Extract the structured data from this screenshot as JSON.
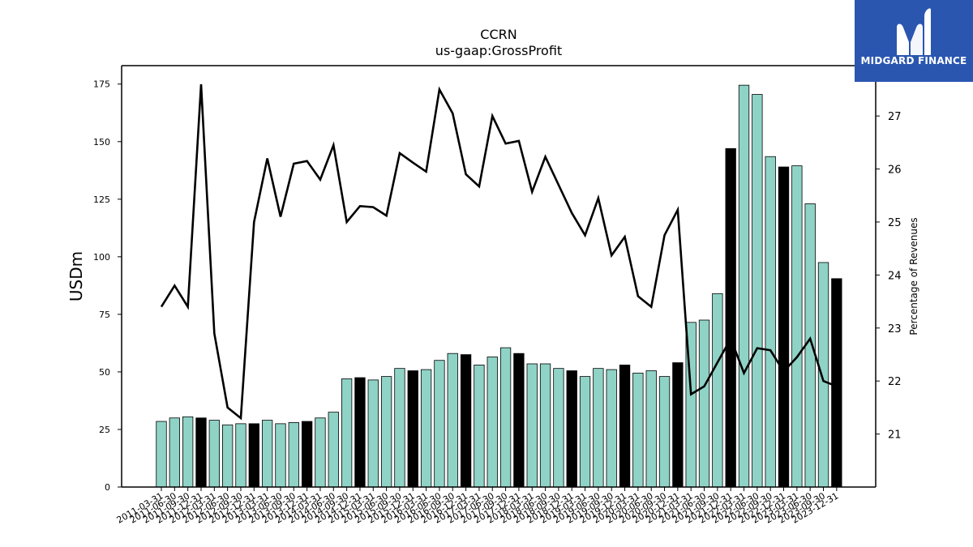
{
  "chart_data": {
    "type": "bar",
    "title": "CCRN",
    "subtitle": "us-gaap:GrossProfit",
    "ylabel": "USDm",
    "y2label": "Percentage of Revenues",
    "ylim": [
      0,
      183
    ],
    "y2lim": [
      20.0,
      27.95
    ],
    "yticks": [
      0,
      25,
      50,
      75,
      100,
      125,
      150,
      175
    ],
    "y2ticks": [
      21,
      22,
      23,
      24,
      25,
      26,
      27
    ],
    "grid": false,
    "bar_colors": {
      "quarter": "#8fd3c6",
      "fiscal_q4": "#000000"
    },
    "line_color": "#000000",
    "categories": [
      "2011-03-31",
      "2011-06-30",
      "2011-09-30",
      "2011-12-31",
      "2012-03-31",
      "2012-06-30",
      "2012-09-30",
      "2012-12-31",
      "2013-03-31",
      "2013-06-30",
      "2013-09-30",
      "2013-12-31",
      "2014-03-31",
      "2014-06-30",
      "2014-09-30",
      "2014-12-31",
      "2015-03-31",
      "2015-06-30",
      "2015-09-30",
      "2015-12-31",
      "2016-03-31",
      "2016-06-30",
      "2016-09-30",
      "2016-12-31",
      "2017-03-31",
      "2017-06-30",
      "2017-09-30",
      "2017-12-31",
      "2018-03-31",
      "2018-06-30",
      "2018-09-30",
      "2018-12-31",
      "2019-03-31",
      "2019-06-30",
      "2019-09-30",
      "2019-12-31",
      "2020-03-31",
      "2020-06-30",
      "2020-09-30",
      "2020-12-31",
      "2021-03-31",
      "2021-06-30",
      "2021-09-30",
      "2021-12-31",
      "2022-03-31",
      "2022-06-30",
      "2022-09-30",
      "2022-12-31",
      "2023-03-31",
      "2023-06-30",
      "2023-09-30",
      "2023-12-31"
    ],
    "series": [
      {
        "axis": "left",
        "kind": "bar",
        "values": [
          28.5,
          30,
          30.5,
          30,
          29,
          27,
          27.5,
          27.5,
          29,
          27.5,
          28,
          28.5,
          30,
          32.5,
          47,
          47.5,
          46.5,
          48,
          51.5,
          50.5,
          51,
          55,
          58,
          57.5,
          53,
          56.5,
          60.5,
          58,
          53.5,
          53.5,
          51.5,
          50.5,
          48,
          51.5,
          51,
          53,
          49.5,
          50.5,
          48,
          54,
          71.5,
          72.5,
          84,
          147,
          174.5,
          170.5,
          143.5,
          139,
          139.5,
          123,
          97.5,
          90.5
        ],
        "highlight": [
          false,
          false,
          false,
          true,
          false,
          false,
          false,
          true,
          false,
          false,
          false,
          true,
          false,
          false,
          false,
          true,
          false,
          false,
          false,
          true,
          false,
          false,
          false,
          true,
          false,
          false,
          false,
          true,
          false,
          false,
          false,
          true,
          false,
          false,
          false,
          true,
          false,
          false,
          false,
          true,
          false,
          false,
          false,
          true,
          false,
          false,
          false,
          true,
          false,
          false,
          false,
          true
        ]
      },
      {
        "axis": "right",
        "kind": "line",
        "values": [
          23.4,
          23.8,
          23.4,
          27.6,
          22.9,
          21.5,
          21.3,
          25.0,
          26.2,
          25.1,
          26.1,
          26.15,
          25.8,
          26.45,
          25.0,
          25.3,
          25.28,
          25.12,
          26.3,
          26.12,
          25.95,
          27.5,
          27.05,
          25.9,
          25.67,
          27.0,
          26.48,
          26.53,
          25.57,
          26.23,
          25.7,
          25.17,
          24.75,
          25.45,
          24.37,
          24.72,
          23.6,
          23.4,
          24.75,
          25.23,
          21.75,
          21.9,
          22.35,
          22.8,
          22.15,
          22.62,
          22.58,
          22.18,
          22.45,
          22.8,
          22.0,
          21.9
        ]
      }
    ]
  },
  "logo": {
    "text": "MIDGARD FINANCE",
    "icon": "midgard-m-logo-icon",
    "background": "#2a56b0"
  }
}
